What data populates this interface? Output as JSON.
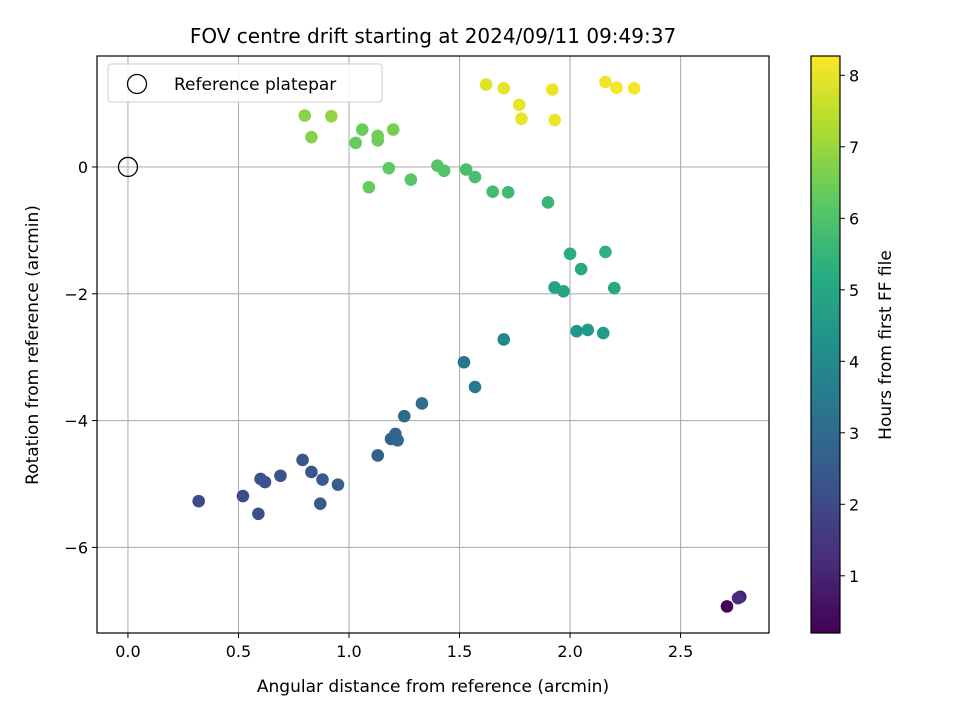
{
  "chart_data": {
    "type": "scatter",
    "title": "FOV centre drift starting at 2024/09/11 09:49:37",
    "xlabel": "Angular distance from reference (arcmin)",
    "ylabel": "Rotation from reference (arcmin)",
    "xlim": [
      -0.14,
      2.9
    ],
    "ylim": [
      -7.35,
      1.75
    ],
    "xticks": [
      0.0,
      0.5,
      1.0,
      1.5,
      2.0,
      2.5
    ],
    "xtick_labels": [
      "0.0",
      "0.5",
      "1.0",
      "1.5",
      "2.0",
      "2.5"
    ],
    "yticks": [
      0,
      -2,
      -4,
      -6
    ],
    "ytick_labels": [
      "0",
      "−2",
      "−4",
      "−6"
    ],
    "grid": true,
    "legend": {
      "placement": "upper-left",
      "entries": [
        {
          "label": "Reference platepar",
          "marker": "open-circle"
        }
      ]
    },
    "reference_point": {
      "x": 0.0,
      "y": 0.0
    },
    "colorbar": {
      "label": "Hours from first FF file",
      "colormap": "viridis",
      "range": [
        0.2,
        8.27
      ],
      "ticks": [
        1,
        2,
        3,
        4,
        5,
        6,
        7,
        8
      ],
      "tick_labels": [
        "1",
        "2",
        "3",
        "4",
        "5",
        "6",
        "7",
        "8"
      ]
    },
    "points": [
      {
        "x": 2.71,
        "y": -6.93,
        "hours": 0.2
      },
      {
        "x": 2.77,
        "y": -6.78,
        "hours": 0.8
      },
      {
        "x": 2.76,
        "y": -6.8,
        "hours": 1.2
      },
      {
        "x": 0.32,
        "y": -5.27,
        "hours": 2.05
      },
      {
        "x": 0.52,
        "y": -5.19,
        "hours": 2.1
      },
      {
        "x": 0.59,
        "y": -5.47,
        "hours": 2.15
      },
      {
        "x": 0.6,
        "y": -4.92,
        "hours": 2.2
      },
      {
        "x": 0.62,
        "y": -4.97,
        "hours": 2.25
      },
      {
        "x": 0.69,
        "y": -4.87,
        "hours": 2.3
      },
      {
        "x": 0.79,
        "y": -4.62,
        "hours": 2.35
      },
      {
        "x": 0.83,
        "y": -4.81,
        "hours": 2.4
      },
      {
        "x": 0.87,
        "y": -5.31,
        "hours": 2.45
      },
      {
        "x": 0.88,
        "y": -4.93,
        "hours": 2.5
      },
      {
        "x": 0.95,
        "y": -5.01,
        "hours": 2.55
      },
      {
        "x": 1.13,
        "y": -4.55,
        "hours": 2.65
      },
      {
        "x": 1.19,
        "y": -4.29,
        "hours": 2.75
      },
      {
        "x": 1.21,
        "y": -4.21,
        "hours": 2.8
      },
      {
        "x": 1.22,
        "y": -4.31,
        "hours": 2.85
      },
      {
        "x": 1.25,
        "y": -3.93,
        "hours": 2.95
      },
      {
        "x": 1.33,
        "y": -3.73,
        "hours": 3.05
      },
      {
        "x": 1.52,
        "y": -3.08,
        "hours": 3.3
      },
      {
        "x": 1.57,
        "y": -3.47,
        "hours": 3.5
      },
      {
        "x": 1.7,
        "y": -2.72,
        "hours": 3.9
      },
      {
        "x": 2.03,
        "y": -2.59,
        "hours": 4.4
      },
      {
        "x": 2.08,
        "y": -2.57,
        "hours": 4.5
      },
      {
        "x": 2.15,
        "y": -2.62,
        "hours": 4.6
      },
      {
        "x": 1.93,
        "y": -1.9,
        "hours": 4.8
      },
      {
        "x": 1.97,
        "y": -1.96,
        "hours": 4.9
      },
      {
        "x": 2.2,
        "y": -1.91,
        "hours": 5.0
      },
      {
        "x": 2.05,
        "y": -1.61,
        "hours": 5.1
      },
      {
        "x": 2.0,
        "y": -1.37,
        "hours": 5.25
      },
      {
        "x": 2.16,
        "y": -1.34,
        "hours": 5.35
      },
      {
        "x": 1.9,
        "y": -0.56,
        "hours": 5.55
      },
      {
        "x": 1.72,
        "y": -0.4,
        "hours": 5.7
      },
      {
        "x": 1.65,
        "y": -0.39,
        "hours": 5.75
      },
      {
        "x": 1.57,
        "y": -0.16,
        "hours": 5.85
      },
      {
        "x": 1.53,
        "y": -0.04,
        "hours": 5.9
      },
      {
        "x": 1.43,
        "y": -0.06,
        "hours": 6.0
      },
      {
        "x": 1.4,
        "y": 0.02,
        "hours": 6.05
      },
      {
        "x": 1.28,
        "y": -0.2,
        "hours": 6.15
      },
      {
        "x": 1.18,
        "y": -0.02,
        "hours": 6.25
      },
      {
        "x": 1.09,
        "y": -0.32,
        "hours": 6.3
      },
      {
        "x": 1.03,
        "y": 0.38,
        "hours": 6.35
      },
      {
        "x": 1.06,
        "y": 0.59,
        "hours": 6.4
      },
      {
        "x": 1.13,
        "y": 0.42,
        "hours": 6.45
      },
      {
        "x": 1.13,
        "y": 0.49,
        "hours": 6.5
      },
      {
        "x": 1.2,
        "y": 0.59,
        "hours": 6.55
      },
      {
        "x": 0.83,
        "y": 0.47,
        "hours": 6.7
      },
      {
        "x": 0.8,
        "y": 0.81,
        "hours": 6.8
      },
      {
        "x": 0.92,
        "y": 0.8,
        "hours": 6.9
      },
      {
        "x": 1.62,
        "y": 1.3,
        "hours": 7.9
      },
      {
        "x": 1.7,
        "y": 1.24,
        "hours": 7.95
      },
      {
        "x": 1.77,
        "y": 0.98,
        "hours": 8.0
      },
      {
        "x": 1.78,
        "y": 0.76,
        "hours": 8.0
      },
      {
        "x": 1.92,
        "y": 1.22,
        "hours": 8.05
      },
      {
        "x": 1.93,
        "y": 0.74,
        "hours": 8.05
      },
      {
        "x": 2.16,
        "y": 1.34,
        "hours": 8.1
      },
      {
        "x": 2.21,
        "y": 1.25,
        "hours": 8.15
      },
      {
        "x": 2.29,
        "y": 1.24,
        "hours": 8.2
      }
    ]
  }
}
